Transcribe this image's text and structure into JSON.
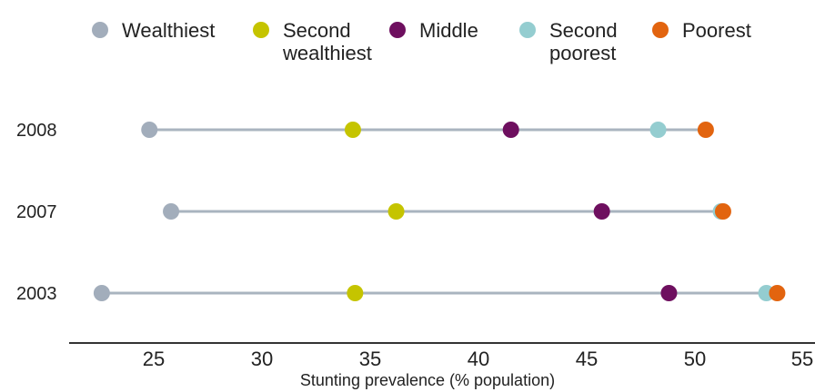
{
  "chart_data": {
    "type": "scatter",
    "title": "",
    "xlabel": "Stunting prevalence (% population)",
    "ylabel": "",
    "xlim": [
      21,
      55
    ],
    "xticks": [
      "25",
      "30",
      "35",
      "40",
      "45",
      "50",
      "55"
    ],
    "grid": false,
    "legend_position": "top",
    "categories": [
      "2008",
      "2007",
      "2003"
    ],
    "connector_color": "#a9b4bf",
    "series": [
      {
        "name": "Wealthiest",
        "legend_lines": [
          "Wealthiest"
        ],
        "color": "#a2adbb",
        "values": [
          24.8,
          25.8,
          22.6
        ]
      },
      {
        "name": "Second wealthiest",
        "legend_lines": [
          "Second",
          "wealthiest"
        ],
        "color": "#c5c400",
        "values": [
          34.2,
          36.2,
          34.3
        ]
      },
      {
        "name": "Middle",
        "legend_lines": [
          "Middle"
        ],
        "color": "#6e0f5f",
        "values": [
          41.5,
          45.7,
          48.8
        ]
      },
      {
        "name": "Second poorest",
        "legend_lines": [
          "Second",
          "poorest"
        ],
        "color": "#94cdd0",
        "values": [
          48.3,
          51.2,
          53.3
        ]
      },
      {
        "name": "Poorest",
        "legend_lines": [
          "Poorest"
        ],
        "color": "#e2640f",
        "values": [
          50.5,
          51.3,
          53.8
        ]
      }
    ]
  }
}
